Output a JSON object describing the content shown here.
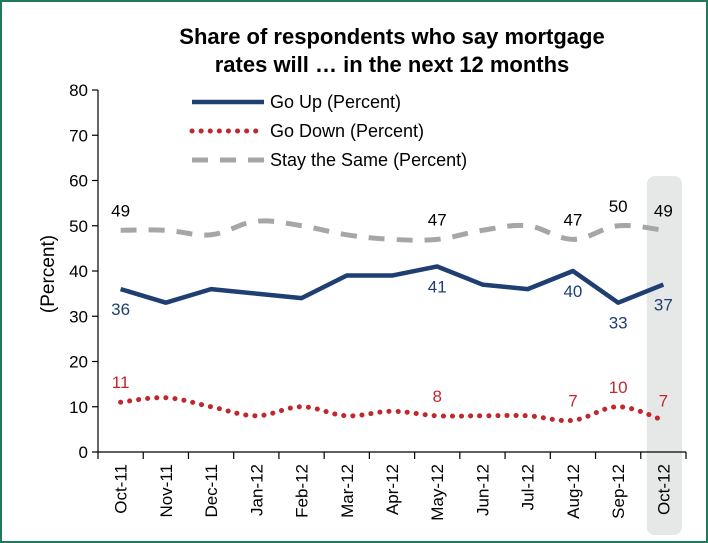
{
  "chart_data": {
    "type": "line",
    "title_line1": "Share of respondents who say mortgage",
    "title_line2": "rates will … in the next 12 months",
    "ylabel": "(Percent)",
    "xlabel": "",
    "ylim": [
      0,
      80
    ],
    "yticks": [
      0,
      10,
      20,
      30,
      40,
      50,
      60,
      70,
      80
    ],
    "grid": false,
    "legend_position": "top-center",
    "categories": [
      "Oct-11",
      "Nov-11",
      "Dec-11",
      "Jan-12",
      "Feb-12",
      "Mar-12",
      "Apr-12",
      "May-12",
      "Jun-12",
      "Jul-12",
      "Aug-12",
      "Sep-12",
      "Oct-12"
    ],
    "highlight_category": "Oct-12",
    "highlight_color": "#e6e8e8",
    "series": [
      {
        "name": "Go Up (Percent)",
        "color": "#1f3f73",
        "style": "solid",
        "values": [
          36,
          33,
          36,
          35,
          34,
          39,
          39,
          41,
          37,
          36,
          40,
          33,
          37
        ],
        "labels": [
          {
            "index": 0,
            "text": "36",
            "pos": "below"
          },
          {
            "index": 7,
            "text": "41",
            "pos": "below"
          },
          {
            "index": 10,
            "text": "40",
            "pos": "below"
          },
          {
            "index": 11,
            "text": "33",
            "pos": "below"
          },
          {
            "index": 12,
            "text": "37",
            "pos": "below"
          }
        ]
      },
      {
        "name": "Go Down (Percent)",
        "color": "#c0282e",
        "style": "dotted",
        "values": [
          11,
          12,
          10,
          8,
          10,
          8,
          9,
          8,
          8,
          8,
          7,
          10,
          7
        ],
        "labels": [
          {
            "index": 0,
            "text": "11",
            "pos": "above"
          },
          {
            "index": 7,
            "text": "8",
            "pos": "above"
          },
          {
            "index": 10,
            "text": "7",
            "pos": "above"
          },
          {
            "index": 11,
            "text": "10",
            "pos": "above"
          },
          {
            "index": 12,
            "text": "7",
            "pos": "above"
          }
        ]
      },
      {
        "name": "Stay the Same (Percent)",
        "color": "#a6a6a6",
        "style": "dashed",
        "values": [
          49,
          49,
          48,
          51,
          50,
          48,
          47,
          47,
          49,
          50,
          47,
          50,
          49
        ],
        "labels": [
          {
            "index": 0,
            "text": "49",
            "pos": "above"
          },
          {
            "index": 7,
            "text": "47",
            "pos": "above"
          },
          {
            "index": 10,
            "text": "47",
            "pos": "above"
          },
          {
            "index": 11,
            "text": "50",
            "pos": "above"
          },
          {
            "index": 12,
            "text": "49",
            "pos": "above"
          }
        ]
      }
    ]
  }
}
